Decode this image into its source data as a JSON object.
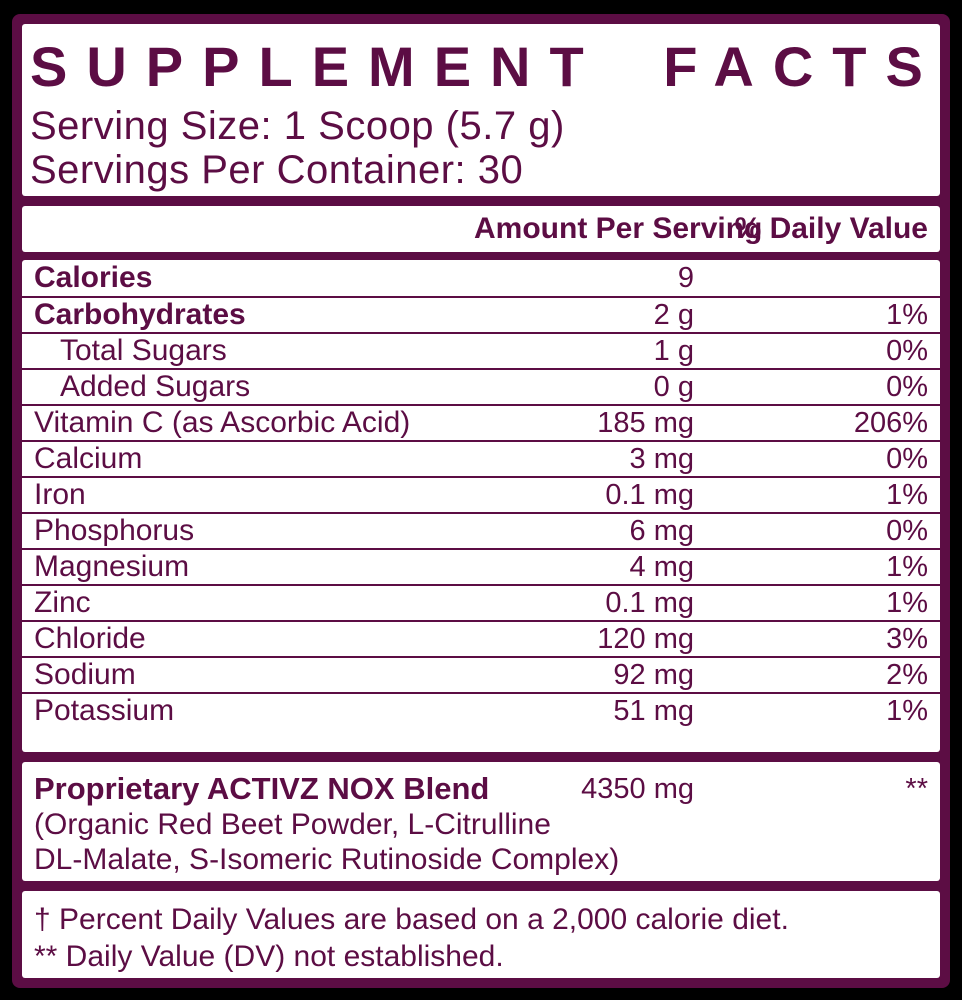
{
  "colors": {
    "maroon": "#5c0d44",
    "white": "#ffffff",
    "bg": "#000000"
  },
  "header": {
    "title": "SUPPLEMENT FACTS",
    "serving_size": "Serving Size: 1 Scoop (5.7 g)",
    "servings_per_container": "Servings Per Container: 30"
  },
  "table": {
    "columns": {
      "amount": "Amount Per Serving",
      "dv": "% Daily Value"
    },
    "rows": [
      {
        "name": "Calories",
        "amount": "9",
        "dv": ""
      },
      {
        "name": "Carbohydrates",
        "amount": "2 g",
        "dv": "1%"
      },
      {
        "name": "Total Sugars",
        "amount": "1 g",
        "dv": "0%"
      },
      {
        "name": "Added Sugars",
        "amount": "0 g",
        "dv": "0%"
      },
      {
        "name": "Vitamin C (as Ascorbic Acid)",
        "amount": "185 mg",
        "dv": "206%"
      },
      {
        "name": "Calcium",
        "amount": "3 mg",
        "dv": "0%"
      },
      {
        "name": "Iron",
        "amount": "0.1 mg",
        "dv": "1%"
      },
      {
        "name": "Phosphorus",
        "amount": "6 mg",
        "dv": "0%"
      },
      {
        "name": "Magnesium",
        "amount": "4 mg",
        "dv": "1%"
      },
      {
        "name": "Zinc",
        "amount": "0.1 mg",
        "dv": "1%"
      },
      {
        "name": "Chloride",
        "amount": "120 mg",
        "dv": "3%"
      },
      {
        "name": "Sodium",
        "amount": "92 mg",
        "dv": "2%"
      },
      {
        "name": "Potassium",
        "amount": "51 mg",
        "dv": "1%"
      }
    ]
  },
  "blend": {
    "name": "Proprietary ACTIVZ NOX Blend",
    "amount": "4350 mg",
    "dv": "**",
    "description_line1": "(Organic Red Beet Powder, L-Citrulline",
    "description_line2": "DL-Malate, S-Isomeric Rutinoside Complex)"
  },
  "footnotes": {
    "line1": "† Percent Daily Values are based on a 2,000 calorie diet.",
    "line2": "** Daily Value (DV) not established."
  }
}
